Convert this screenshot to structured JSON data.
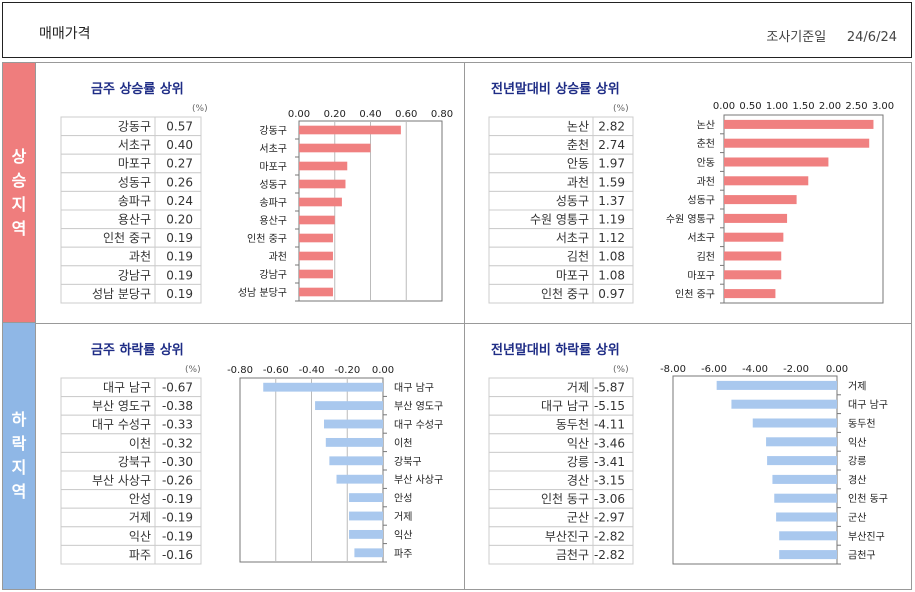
{
  "header": {
    "title": "매매가격",
    "date_label": "조사기준일",
    "date": "24/6/24"
  },
  "sidebar": {
    "up_label": "상승지역",
    "down_label": "하락지역"
  },
  "colors": {
    "up_bar": "#f08080",
    "down_bar": "#a9c8ee",
    "title": "#1f2d86",
    "up_side": "#ef7d7d",
    "down_side": "#8fb7e6"
  },
  "chart_data": [
    {
      "type": "bar",
      "title": "금주 상승률 상위",
      "unit": "(%)",
      "categories": [
        "강동구",
        "서초구",
        "마포구",
        "성동구",
        "송파구",
        "용산구",
        "인천 중구",
        "과천",
        "강남구",
        "성남 분당구"
      ],
      "values": [
        0.57,
        0.4,
        0.27,
        0.26,
        0.24,
        0.2,
        0.19,
        0.19,
        0.19,
        0.19
      ],
      "value_labels": [
        "0.57",
        "0.40",
        "0.27",
        "0.26",
        "0.24",
        "0.20",
        "0.19",
        "0.19",
        "0.19",
        "0.19"
      ],
      "xlim": [
        0,
        0.8
      ],
      "ticks": [
        "0.00",
        "0.20",
        "0.40",
        "0.60",
        "0.80"
      ],
      "grid": true
    },
    {
      "type": "bar",
      "title": "전년말대비 상승률 상위",
      "unit": "(%)",
      "categories": [
        "논산",
        "춘천",
        "안동",
        "과천",
        "성동구",
        "수원 영통구",
        "서초구",
        "김천",
        "마포구",
        "인천 중구"
      ],
      "values": [
        2.82,
        2.74,
        1.97,
        1.59,
        1.37,
        1.19,
        1.12,
        1.08,
        1.08,
        0.97
      ],
      "value_labels": [
        "2.82",
        "2.74",
        "1.97",
        "1.59",
        "1.37",
        "1.19",
        "1.12",
        "1.08",
        "1.08",
        "0.97"
      ],
      "xlim": [
        0,
        3.0
      ],
      "ticks": [
        "0.00",
        "0.50",
        "1.00",
        "1.50",
        "2.00",
        "2.50",
        "3.00"
      ],
      "grid": false
    },
    {
      "type": "bar",
      "title": "금주 하락률 상위",
      "unit": "(%)",
      "categories": [
        "대구 남구",
        "부산 영도구",
        "대구 수성구",
        "이천",
        "강북구",
        "부산 사상구",
        "안성",
        "거제",
        "익산",
        "파주"
      ],
      "values": [
        -0.67,
        -0.38,
        -0.33,
        -0.32,
        -0.3,
        -0.26,
        -0.19,
        -0.19,
        -0.19,
        -0.16
      ],
      "value_labels": [
        "-0.67",
        "-0.38",
        "-0.33",
        "-0.32",
        "-0.30",
        "-0.26",
        "-0.19",
        "-0.19",
        "-0.19",
        "-0.16"
      ],
      "xlim": [
        -0.8,
        0
      ],
      "ticks": [
        "-0.80",
        "-0.60",
        "-0.40",
        "-0.20",
        "0.00"
      ],
      "grid": true
    },
    {
      "type": "bar",
      "title": "전년말대비 하락률 상위",
      "unit": "(%)",
      "categories": [
        "거제",
        "대구 남구",
        "동두천",
        "익산",
        "강릉",
        "경산",
        "인천 동구",
        "군산",
        "부산진구",
        "금천구"
      ],
      "values": [
        -5.87,
        -5.15,
        -4.11,
        -3.46,
        -3.41,
        -3.15,
        -3.06,
        -2.97,
        -2.82,
        -2.82
      ],
      "value_labels": [
        "-5.87",
        "-5.15",
        "-4.11",
        "-3.46",
        "-3.41",
        "-3.15",
        "-3.06",
        "-2.97",
        "-2.82",
        "-2.82"
      ],
      "xlim": [
        -8,
        0
      ],
      "ticks": [
        "-8.00",
        "-6.00",
        "-4.00",
        "-2.00",
        "0.00"
      ],
      "grid": false
    }
  ]
}
